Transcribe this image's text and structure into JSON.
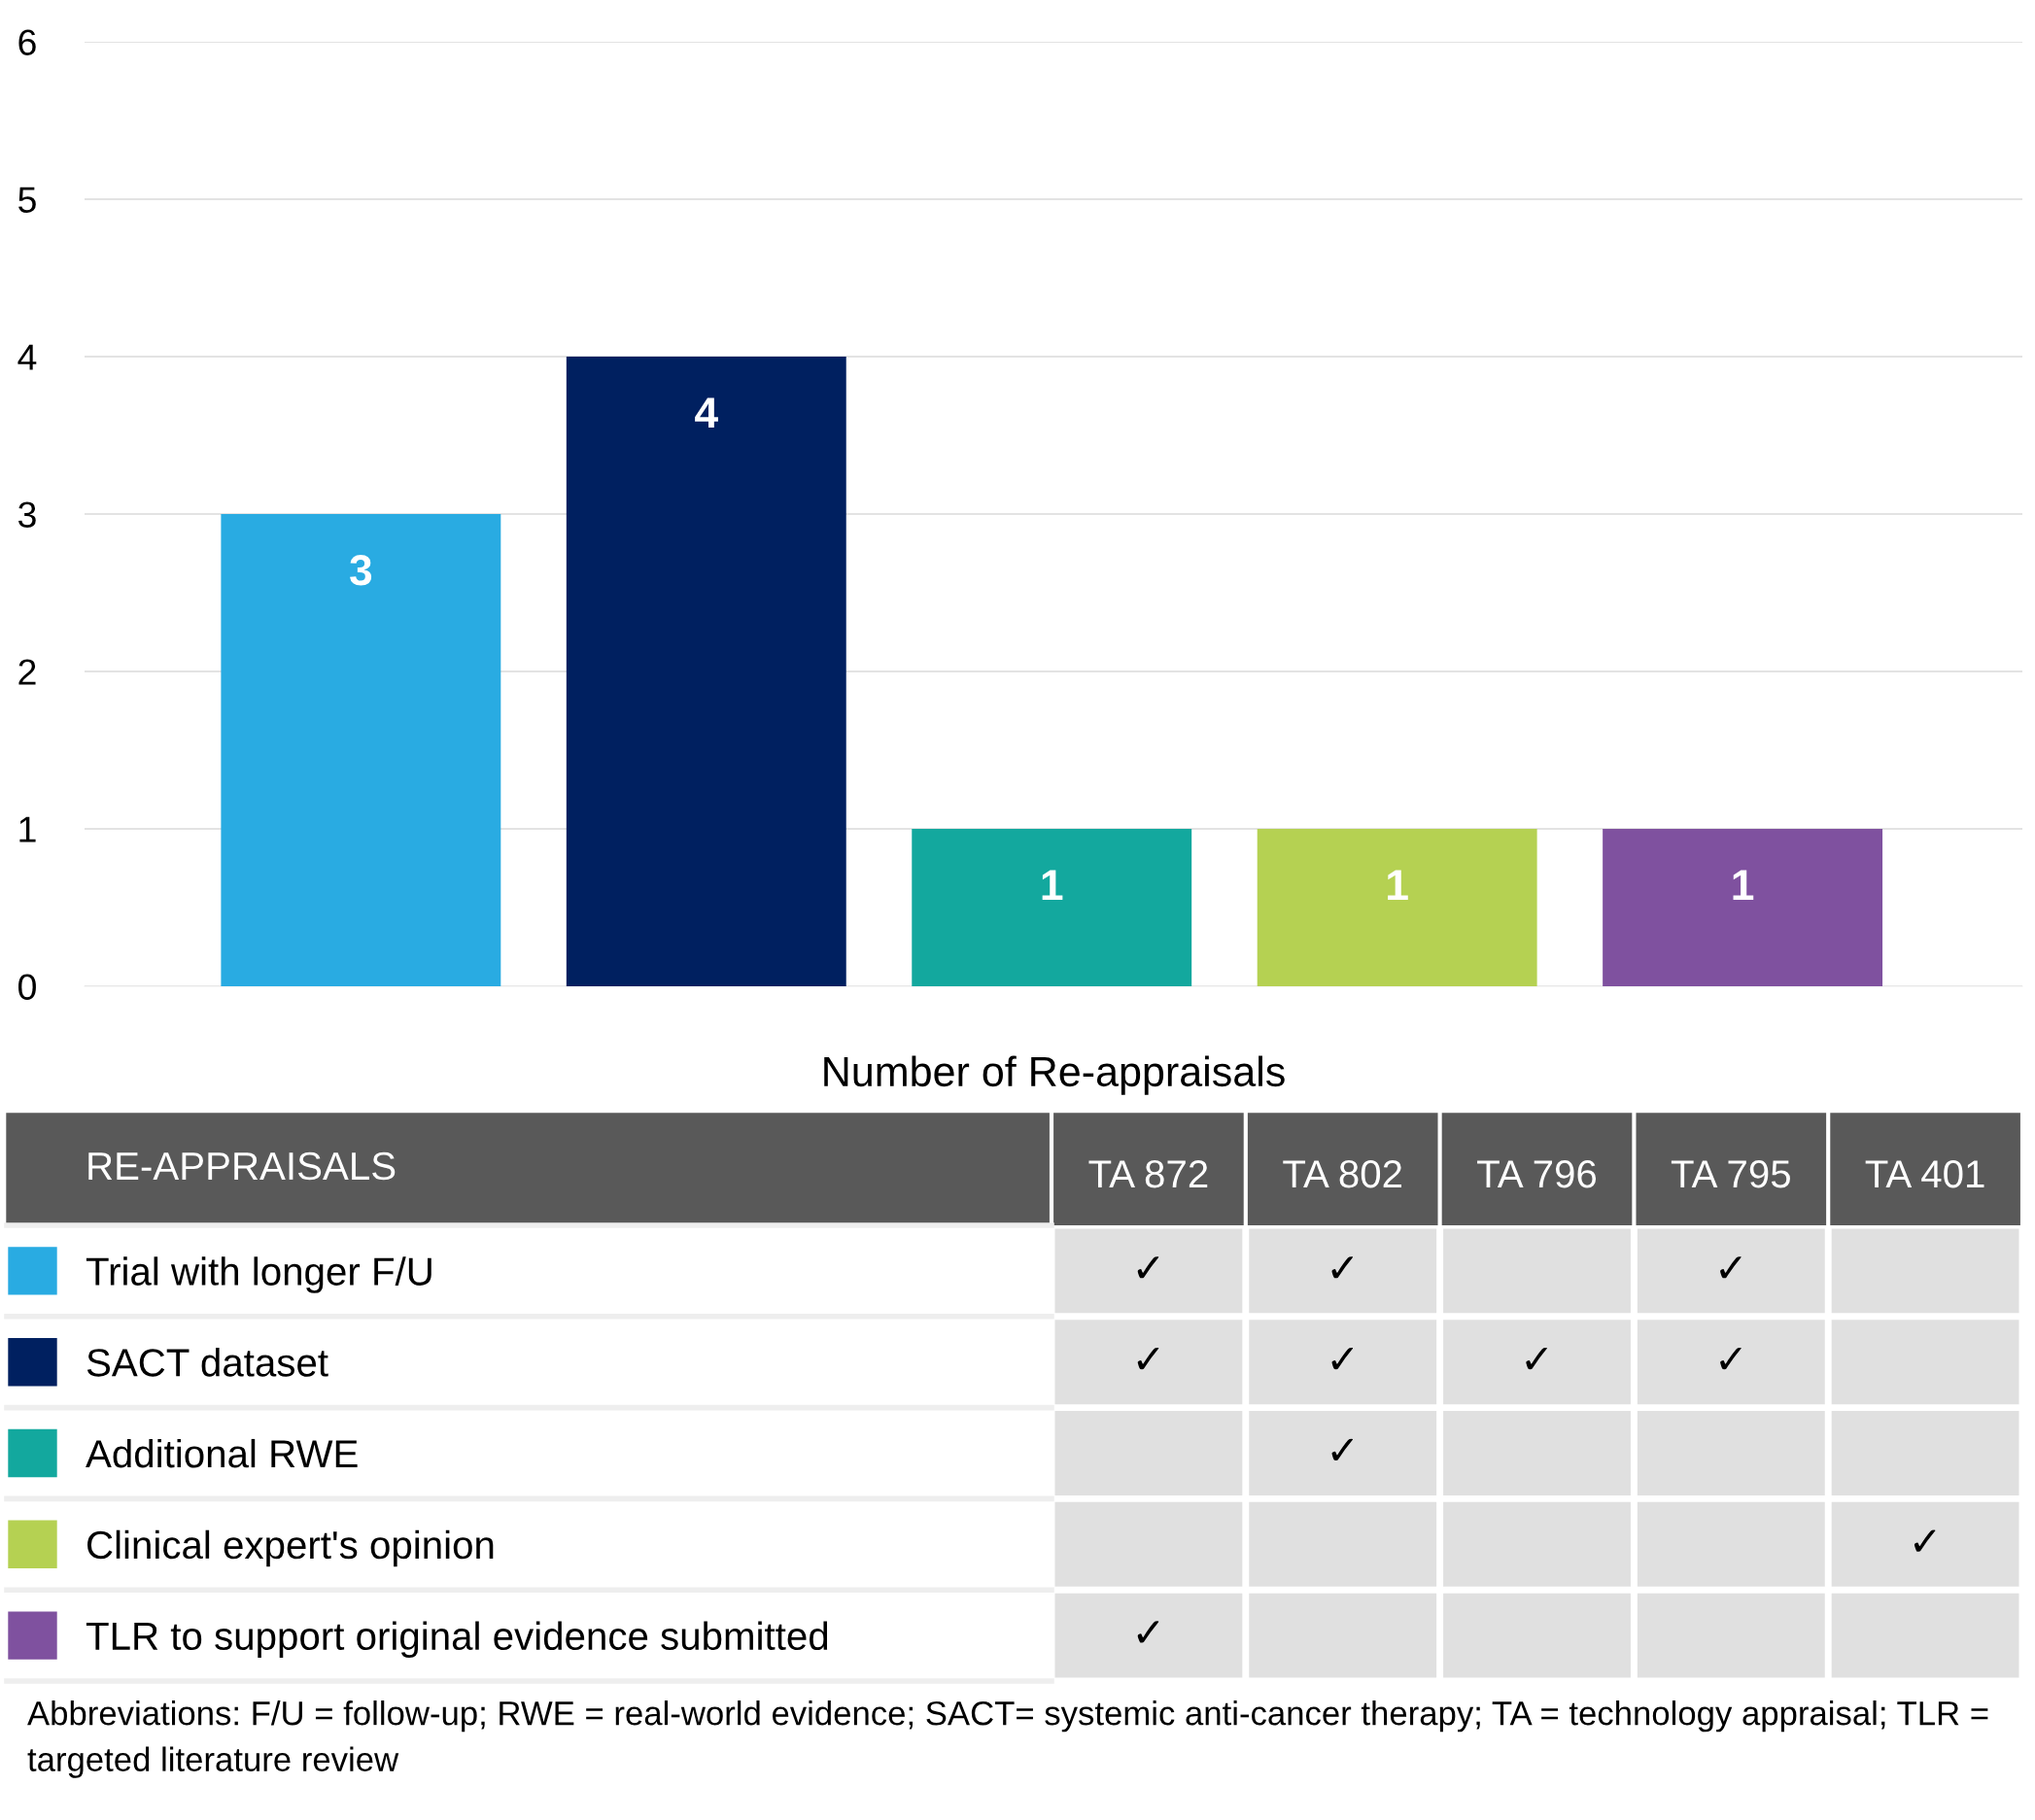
{
  "chart_data": [
    {
      "type": "bar",
      "categories": [
        null,
        null,
        null,
        null,
        null
      ],
      "values": [
        3,
        4,
        1,
        1,
        1
      ],
      "colors": [
        "#29abe2",
        "#002060",
        "#13a89e",
        "#b5d152",
        "#7f519f"
      ],
      "xlabel": "Number of Re-appraisals",
      "ylim": [
        0,
        6
      ],
      "yticks": [
        0,
        1,
        2,
        3,
        4,
        5,
        6
      ],
      "grid": "y",
      "data_labels": true
    },
    {
      "type": "heatmap",
      "title": "RE-APPRAISALS",
      "categories": [
        "TA 872",
        "TA 802",
        "TA 796",
        "TA 795",
        "TA 401"
      ],
      "y_categories": [
        "Trial with longer F/U",
        "SACT dataset",
        "Additional RWE",
        "Clinical expert's opinion",
        "TLR to support original evidence submitted"
      ],
      "cells": [
        [
          "✓",
          "✓",
          null,
          "✓",
          null
        ],
        [
          "✓",
          "✓",
          "✓",
          "✓",
          null
        ],
        [
          null,
          "✓",
          null,
          null,
          null
        ],
        [
          null,
          null,
          null,
          null,
          "✓"
        ],
        [
          "✓",
          null,
          null,
          null,
          null
        ]
      ],
      "annotations": [
        "Abbreviations: F/U = follow-up; RWE = real-world evidence; SACT= systemic anti-cancer therapy; TA = technology appraisal; TLR = targeted literature review"
      ]
    }
  ]
}
